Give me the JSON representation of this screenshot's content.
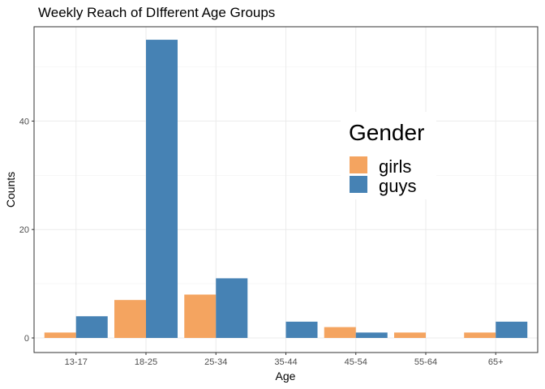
{
  "chart_data": {
    "type": "bar",
    "title": "Weekly Reach of DIfferent Age Groups",
    "xlabel": "Age",
    "ylabel": "Counts",
    "categories": [
      "13-17",
      "18-25",
      "25-34",
      "35-44",
      "45-54",
      "55-64",
      "65+"
    ],
    "series": [
      {
        "name": "girls",
        "color": "#F4A460",
        "values": [
          1,
          7,
          8,
          0,
          2,
          1,
          1
        ]
      },
      {
        "name": "guys",
        "color": "#4682B4",
        "values": [
          4,
          55,
          11,
          3,
          1,
          0,
          3
        ]
      }
    ],
    "ylim": [
      0,
      57.75
    ],
    "yticks": [
      0,
      20,
      40
    ],
    "grid": true,
    "legend": {
      "title": "Gender",
      "placement": "inside-right"
    }
  }
}
